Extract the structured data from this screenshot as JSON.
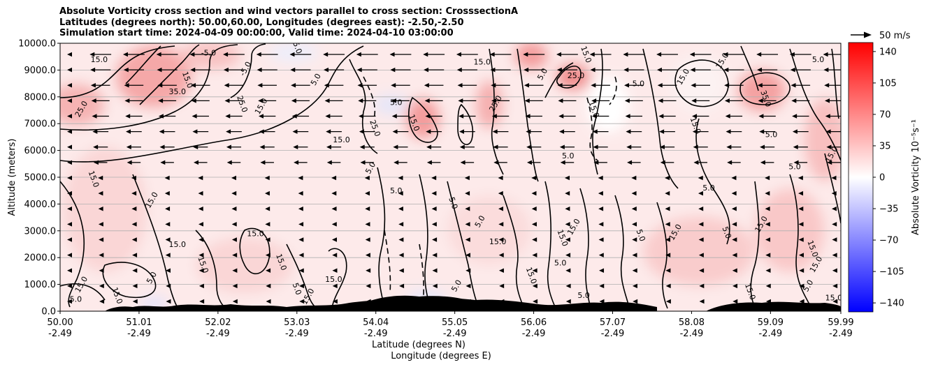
{
  "chart_data": {
    "type": "heatmap",
    "title_lines": [
      "Absolute Vorticity cross section and wind vectors parallel to cross section: CrosssectionA",
      "Latitudes (degrees north): 50.00,60.00, Longitudes (degrees east): -2.50,-2.50",
      "Simulation start time: 2024-04-09 00:00:00, Valid time: 2024-04-10 03:00:00"
    ],
    "ylabel": "Altitude (meters)",
    "xlabel_lines": [
      "Latitude (degrees N)",
      "Longitude (degrees E)"
    ],
    "x_ticks": [
      {
        "lat": "50.00",
        "lon": "-2.49"
      },
      {
        "lat": "51.01",
        "lon": "-2.49"
      },
      {
        "lat": "52.02",
        "lon": "-2.49"
      },
      {
        "lat": "53.03",
        "lon": "-2.49"
      },
      {
        "lat": "54.04",
        "lon": "-2.49"
      },
      {
        "lat": "55.05",
        "lon": "-2.49"
      },
      {
        "lat": "56.06",
        "lon": "-2.49"
      },
      {
        "lat": "57.07",
        "lon": "-2.49"
      },
      {
        "lat": "58.08",
        "lon": "-2.49"
      },
      {
        "lat": "59.09",
        "lon": "-2.49"
      },
      {
        "lat": "59.99",
        "lon": "-2.49"
      }
    ],
    "x_range": [
      50.0,
      59.99
    ],
    "y_ticks": [
      "0.0",
      "1000.0",
      "2000.0",
      "3000.0",
      "4000.0",
      "5000.0",
      "6000.0",
      "7000.0",
      "8000.0",
      "9000.0",
      "10000.0"
    ],
    "y_range": [
      0,
      10000
    ],
    "grid_horizontal": true,
    "colorbar": {
      "label": "Absolute Vorticity 10⁻⁵s⁻¹",
      "ticks": [
        "140",
        "105",
        "70",
        "35",
        "0",
        "−35",
        "−70",
        "−105",
        "−140"
      ],
      "tick_values": [
        140,
        105,
        70,
        35,
        0,
        -35,
        -70,
        -105,
        -140
      ],
      "range": [
        -150,
        150
      ],
      "colormap": "bwr"
    },
    "quiver_key": {
      "label": "50 m/s"
    },
    "contour_labels": [
      {
        "text": "-5.0",
        "lat": 51.9,
        "alt": 9550
      },
      {
        "text": "-5.0",
        "lat": 53.0,
        "alt": 9850
      },
      {
        "text": "-5.0",
        "lat": 52.4,
        "alt": 9000
      },
      {
        "text": "15.0",
        "lat": 50.5,
        "alt": 9300
      },
      {
        "text": "15.0",
        "lat": 51.6,
        "alt": 8600
      },
      {
        "text": "25.0",
        "lat": 50.3,
        "alt": 7500
      },
      {
        "text": "35.0",
        "lat": 51.5,
        "alt": 8100
      },
      {
        "text": "25.0",
        "lat": 52.3,
        "alt": 7700
      },
      {
        "text": "15.0",
        "lat": 52.6,
        "alt": 7600
      },
      {
        "text": "15.0",
        "lat": 53.6,
        "alt": 6300
      },
      {
        "text": "25.0",
        "lat": 54.0,
        "alt": 6800
      },
      {
        "text": "5.0",
        "lat": 53.3,
        "alt": 8600
      },
      {
        "text": "5.0",
        "lat": 54.3,
        "alt": 7700
      },
      {
        "text": "15.0",
        "lat": 54.5,
        "alt": 7000
      },
      {
        "text": "25.0",
        "lat": 55.6,
        "alt": 7700
      },
      {
        "text": "15.0",
        "lat": 55.4,
        "alt": 9200
      },
      {
        "text": "15.0",
        "lat": 56.7,
        "alt": 9550
      },
      {
        "text": "5.0",
        "lat": 56.2,
        "alt": 8800
      },
      {
        "text": "25.0",
        "lat": 56.6,
        "alt": 8700
      },
      {
        "text": "15.0",
        "lat": 56.8,
        "alt": 7500
      },
      {
        "text": "15.0",
        "lat": 58.0,
        "alt": 8700
      },
      {
        "text": "5.0",
        "lat": 57.4,
        "alt": 8400
      },
      {
        "text": "35.0",
        "lat": 59.0,
        "alt": 7900
      },
      {
        "text": "15.0",
        "lat": 58.5,
        "alt": 9300
      },
      {
        "text": "5.0",
        "lat": 59.1,
        "alt": 6500
      },
      {
        "text": "15.0",
        "lat": 58.1,
        "alt": 6900
      },
      {
        "text": "15.0",
        "lat": 59.9,
        "alt": 5800
      },
      {
        "text": "5.0",
        "lat": 59.7,
        "alt": 9300
      },
      {
        "text": "15.0",
        "lat": 50.4,
        "alt": 4900
      },
      {
        "text": "15.0",
        "lat": 51.2,
        "alt": 4100
      },
      {
        "text": "15.0",
        "lat": 51.5,
        "alt": 2400
      },
      {
        "text": "15.0",
        "lat": 51.8,
        "alt": 1700
      },
      {
        "text": "5.0",
        "lat": 51.2,
        "alt": 1200
      },
      {
        "text": "15.0",
        "lat": 52.5,
        "alt": 2800
      },
      {
        "text": "15.0",
        "lat": 52.8,
        "alt": 1800
      },
      {
        "text": "15.0",
        "lat": 50.3,
        "alt": 950
      },
      {
        "text": "5.0",
        "lat": 50.2,
        "alt": 350
      },
      {
        "text": "15.0",
        "lat": 50.7,
        "alt": 550
      },
      {
        "text": "5.0",
        "lat": 54.0,
        "alt": 5300
      },
      {
        "text": "5.0",
        "lat": 54.3,
        "alt": 4400
      },
      {
        "text": "5.0",
        "lat": 55.0,
        "alt": 4000
      },
      {
        "text": "5.0",
        "lat": 55.4,
        "alt": 3300
      },
      {
        "text": "15.0",
        "lat": 55.6,
        "alt": 2500
      },
      {
        "text": "15.0",
        "lat": 56.4,
        "alt": 2700
      },
      {
        "text": "15.0",
        "lat": 56.6,
        "alt": 3100
      },
      {
        "text": "5.0",
        "lat": 56.5,
        "alt": 5700
      },
      {
        "text": "5.0",
        "lat": 57.4,
        "alt": 2800
      },
      {
        "text": "15.0",
        "lat": 57.9,
        "alt": 2900
      },
      {
        "text": "5.0",
        "lat": 58.3,
        "alt": 4500
      },
      {
        "text": "5.0",
        "lat": 58.5,
        "alt": 2900
      },
      {
        "text": "15.0",
        "lat": 59.0,
        "alt": 3200
      },
      {
        "text": "5.0",
        "lat": 59.4,
        "alt": 5300
      },
      {
        "text": "15.0",
        "lat": 59.6,
        "alt": 2300
      },
      {
        "text": "15.0",
        "lat": 59.7,
        "alt": 1700
      },
      {
        "text": "5.0",
        "lat": 56.4,
        "alt": 1700
      },
      {
        "text": "15.0",
        "lat": 56.0,
        "alt": 1300
      },
      {
        "text": "5.0",
        "lat": 55.1,
        "alt": 900
      },
      {
        "text": "15.0",
        "lat": 53.5,
        "alt": 1100
      },
      {
        "text": "5.0",
        "lat": 53.0,
        "alt": 800
      },
      {
        "text": "15.0",
        "lat": 53.2,
        "alt": 500
      },
      {
        "text": "5.0",
        "lat": 56.7,
        "alt": 500
      },
      {
        "text": "15.0",
        "lat": 58.8,
        "alt": 700
      },
      {
        "text": "5.0",
        "lat": 59.6,
        "alt": 900
      },
      {
        "text": "15.0",
        "lat": 59.9,
        "alt": 400
      }
    ]
  }
}
